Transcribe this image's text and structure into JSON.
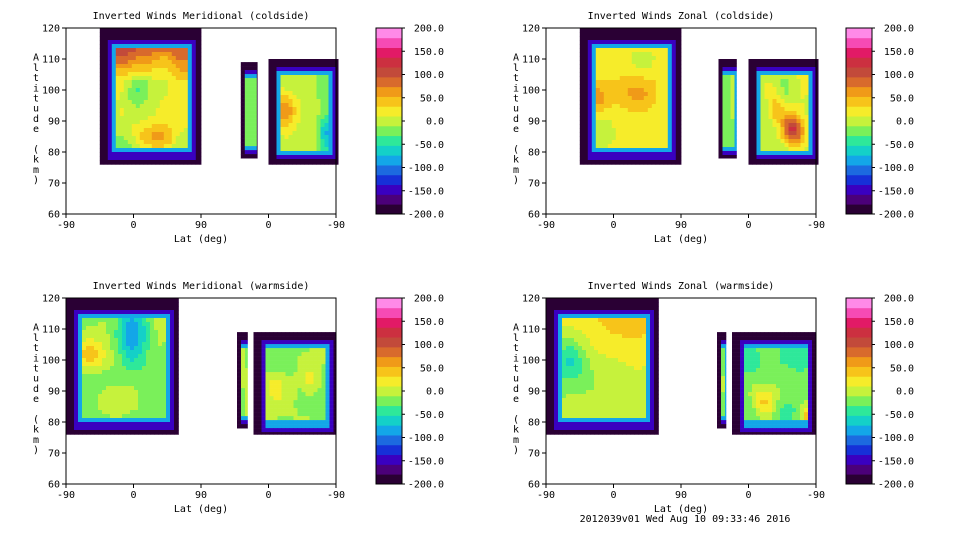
{
  "footer": "2012039v01 Wed Aug 10 09:33:46 2016",
  "colors": {
    "scale": [
      "#2a0034",
      "#4b007a",
      "#3a00c0",
      "#1630d8",
      "#1c6ae0",
      "#13a6e8",
      "#14d0c8",
      "#2ee89a",
      "#7af05a",
      "#c6f23c",
      "#f6ec2a",
      "#f7c41a",
      "#f09a18",
      "#d86a2c",
      "#c24a3a",
      "#cc3040",
      "#e21a66",
      "#f64ab4",
      "#ff8ae8"
    ],
    "background": "#ffffff"
  },
  "chart_data": [
    {
      "type": "heatmap",
      "title": "Inverted Winds Meridional (coldside)",
      "xlabel": "Lat (deg)",
      "ylabel": "Altitude (km)",
      "xticks": [
        "-90",
        "0",
        "90",
        "0",
        "-90"
      ],
      "yticks": [
        "60",
        "70",
        "80",
        "90",
        "100",
        "110",
        "120"
      ],
      "ylim": [
        60,
        120
      ],
      "colorbar": {
        "min": -200.0,
        "max": 200.0,
        "labels": [
          "200.0",
          "150.0",
          "100.0",
          "50.0",
          "0.0",
          "-50.0",
          "-100.0",
          "-150.0",
          "-200.0"
        ]
      },
      "blocks": [
        {
          "x": [
            -45,
            90
          ],
          "y": [
            76,
            120
          ],
          "field": "A",
          "seed": 3
        },
        {
          "x": [
            143,
            165
          ],
          "y": [
            78,
            109
          ],
          "field": "B",
          "seed": 5
        },
        {
          "x": [
            180,
            273
          ],
          "y": [
            76,
            110
          ],
          "field": "C",
          "seed": 7
        }
      ]
    },
    {
      "type": "heatmap",
      "title": "Inverted Winds Zonal (coldside)",
      "xlabel": "Lat (deg)",
      "ylabel": "Altitude (km)",
      "xticks": [
        "-90",
        "0",
        "90",
        "0",
        "-90"
      ],
      "yticks": [
        "60",
        "70",
        "80",
        "90",
        "100",
        "110",
        "120"
      ],
      "ylim": [
        60,
        120
      ],
      "colorbar": {
        "min": -200.0,
        "max": 200.0,
        "labels": [
          "200.0",
          "150.0",
          "100.0",
          "50.0",
          "0.0",
          "-50.0",
          "-100.0",
          "-150.0",
          "-200.0"
        ]
      },
      "blocks": [
        {
          "x": [
            -45,
            90
          ],
          "y": [
            76,
            120
          ],
          "field": "D",
          "seed": 11
        },
        {
          "x": [
            140,
            164
          ],
          "y": [
            78,
            110
          ],
          "field": "B",
          "seed": 13
        },
        {
          "x": [
            180,
            273
          ],
          "y": [
            76,
            110
          ],
          "field": "E",
          "seed": 17
        }
      ]
    },
    {
      "type": "heatmap",
      "title": "Inverted Winds Meridional (warmside)",
      "xlabel": "Lat (deg)",
      "ylabel": "Altitude (km)",
      "xticks": [
        "-90",
        "0",
        "90",
        "0",
        "-90"
      ],
      "yticks": [
        "60",
        "70",
        "80",
        "90",
        "100",
        "110",
        "120"
      ],
      "ylim": [
        60,
        120
      ],
      "colorbar": {
        "min": -200.0,
        "max": 200.0,
        "labels": [
          "200.0",
          "150.0",
          "100.0",
          "50.0",
          "0.0",
          "-50.0",
          "-100.0",
          "-150.0",
          "-200.0"
        ]
      },
      "blocks": [
        {
          "x": [
            -90,
            60
          ],
          "y": [
            76,
            120
          ],
          "field": "F",
          "seed": 19
        },
        {
          "x": [
            138,
            152
          ],
          "y": [
            78,
            109
          ],
          "field": "B",
          "seed": 23
        },
        {
          "x": [
            160,
            270
          ],
          "y": [
            76,
            109
          ],
          "field": "G",
          "seed": 29
        }
      ]
    },
    {
      "type": "heatmap",
      "title": "Inverted Winds Zonal (warmside)",
      "xlabel": "Lat (deg)",
      "ylabel": "Altitude (km)",
      "xticks": [
        "-90",
        "0",
        "90",
        "0",
        "-90"
      ],
      "yticks": [
        "60",
        "70",
        "80",
        "90",
        "100",
        "110",
        "120"
      ],
      "ylim": [
        60,
        120
      ],
      "colorbar": {
        "min": -200.0,
        "max": 200.0,
        "labels": [
          "200.0",
          "150.0",
          "100.0",
          "50.0",
          "0.0",
          "-50.0",
          "-100.0",
          "-150.0",
          "-200.0"
        ]
      },
      "blocks": [
        {
          "x": [
            -90,
            60
          ],
          "y": [
            76,
            120
          ],
          "field": "H",
          "seed": 31
        },
        {
          "x": [
            138,
            150
          ],
          "y": [
            78,
            109
          ],
          "field": "B",
          "seed": 37
        },
        {
          "x": [
            158,
            270
          ],
          "y": [
            76,
            109
          ],
          "field": "I",
          "seed": 41
        }
      ]
    }
  ]
}
